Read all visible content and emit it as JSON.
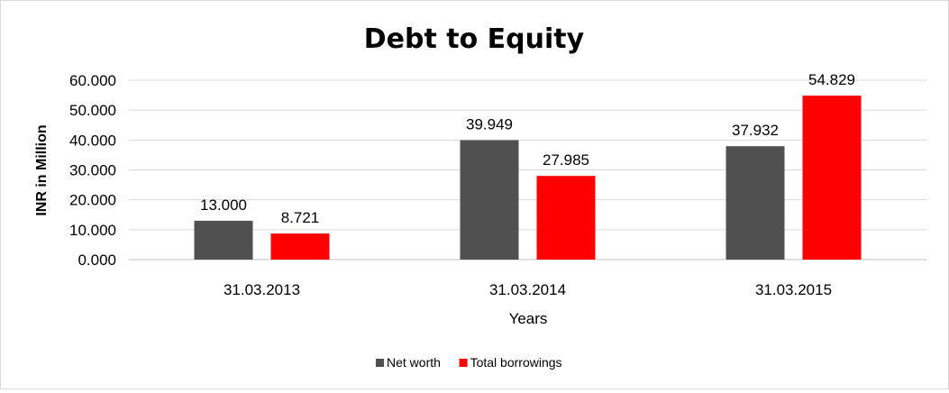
{
  "chart_data": {
    "type": "bar",
    "title": "Debt to Equity",
    "xlabel": "Years",
    "ylabel": "INR in Million",
    "categories": [
      "31.03.2013",
      "31.03.2014",
      "31.03.2015"
    ],
    "series": [
      {
        "name": "Net worth",
        "values": [
          13.0,
          39.949,
          37.932
        ],
        "color": "#505050"
      },
      {
        "name": "Total borrowings",
        "values": [
          8.721,
          27.985,
          54.829
        ],
        "color": "#ff0000"
      }
    ],
    "ylim": [
      0,
      60
    ],
    "yticks": [
      0,
      10,
      20,
      30,
      40,
      50,
      60
    ],
    "ytick_labels": [
      "0.000",
      "10.000",
      "20.000",
      "30.000",
      "40.000",
      "50.000",
      "60.000"
    ],
    "value_labels": [
      [
        "13.000",
        "39.949",
        "37.932"
      ],
      [
        "8.721",
        "27.985",
        "54.829"
      ]
    ],
    "grid": true,
    "legend_position": "bottom",
    "legend_labels": [
      "Net worth",
      "Total borrowings"
    ]
  }
}
